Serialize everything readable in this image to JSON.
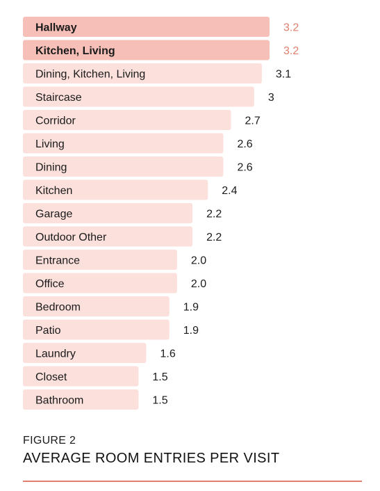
{
  "chart_data": {
    "type": "bar",
    "orientation": "horizontal",
    "categories": [
      "Hallway",
      "Kitchen, Living",
      "Dining, Kitchen, Living",
      "Staircase",
      "Corridor",
      "Living",
      "Dining",
      "Kitchen",
      "Garage",
      "Outdoor Other",
      "Entrance",
      "Office",
      "Bedroom",
      "Patio",
      "Laundry",
      "Closet",
      "Bathroom"
    ],
    "values": [
      3.2,
      3.2,
      3.1,
      3.0,
      2.7,
      2.6,
      2.6,
      2.4,
      2.2,
      2.2,
      2.0,
      2.0,
      1.9,
      1.9,
      1.6,
      1.5,
      1.5
    ],
    "value_labels": [
      "3.2",
      "3.2",
      "3.1",
      "3",
      "2.7",
      "2.6",
      "2.6",
      "2.4",
      "2.2",
      "2.2",
      "2.0",
      "2.0",
      "1.9",
      "1.9",
      "1.6",
      "1.5",
      "1.5"
    ],
    "highlighted": [
      true,
      true,
      false,
      false,
      false,
      false,
      false,
      false,
      false,
      false,
      false,
      false,
      false,
      false,
      false,
      false,
      false
    ],
    "xlim": [
      0,
      3.2
    ],
    "colors": {
      "highlight_bar": "#f6bfb7",
      "bar": "#fbe0dc",
      "highlight_value": "#e07f6e",
      "value": "#1a1a1a"
    }
  },
  "figure": {
    "label": "FIGURE 2",
    "title": "AVERAGE ROOM ENTRIES PER VISIT"
  }
}
